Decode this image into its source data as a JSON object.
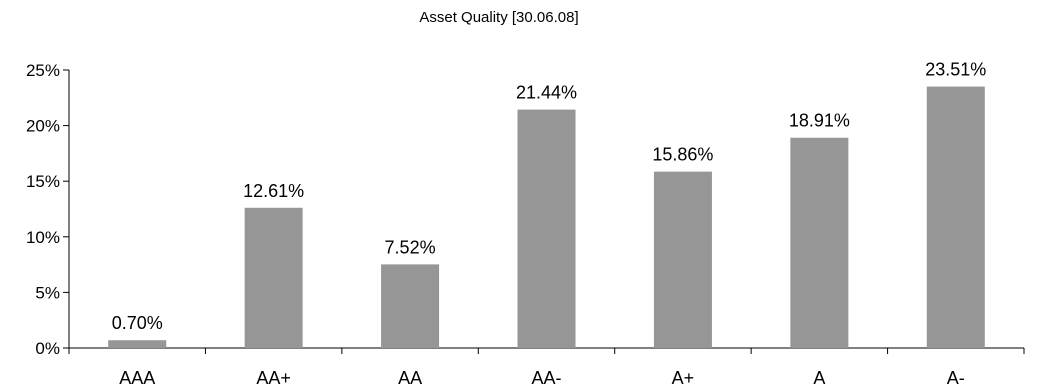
{
  "chart_data": {
    "type": "bar",
    "title": "Asset Quality [30.06.08]",
    "xlabel": "",
    "ylabel": "",
    "categories": [
      "AAA",
      "AA+",
      "AA",
      "AA-",
      "A+",
      "A",
      "A-"
    ],
    "values": [
      0.7,
      12.61,
      7.52,
      21.44,
      15.86,
      18.91,
      23.51
    ],
    "data_labels": [
      "0.70%",
      "12.61%",
      "7.52%",
      "21.44%",
      "15.86%",
      "18.91%",
      "23.51%"
    ],
    "ylim": [
      0,
      25
    ],
    "y_ticks": [
      0,
      5,
      10,
      15,
      20,
      25
    ],
    "y_tick_labels": [
      "0%",
      "5%",
      "10%",
      "15%",
      "20%",
      "25%"
    ],
    "grid": false,
    "legend": "none",
    "bar_color": "#969696"
  }
}
